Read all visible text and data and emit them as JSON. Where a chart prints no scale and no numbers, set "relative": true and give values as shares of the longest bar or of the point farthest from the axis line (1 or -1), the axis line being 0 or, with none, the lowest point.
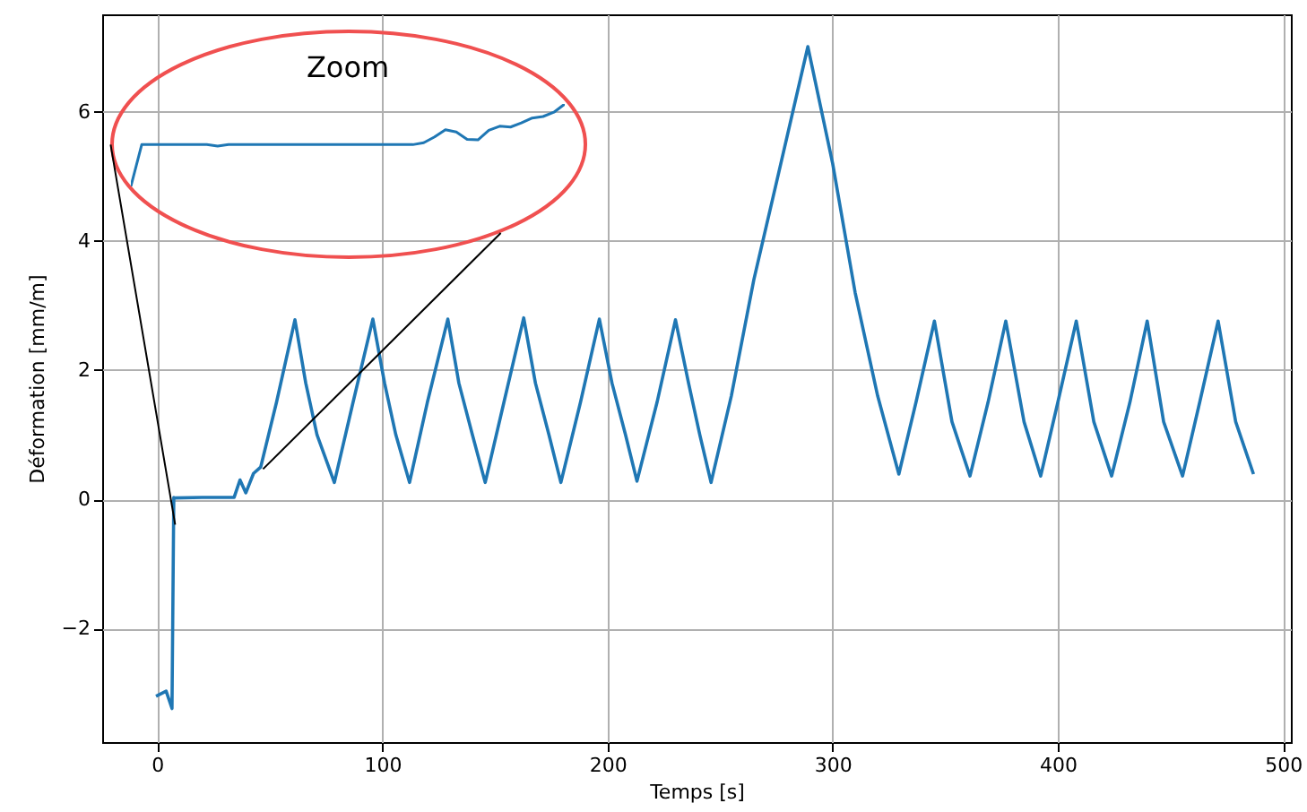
{
  "chart_data": [
    {
      "type": "line",
      "xlabel": "Temps [s]",
      "ylabel": "Déformation [mm/m]",
      "series": [
        {
          "color": "#1f77b4",
          "x": [
            -0.5,
            4,
            6.6,
            7.4,
            7.6,
            20,
            34.2,
            36.8,
            39.4,
            42.8,
            46,
            53,
            61.2,
            66,
            71,
            78.7,
            87,
            95.8,
            101,
            106,
            112.1,
            120,
            129.1,
            134,
            140,
            145.7,
            154,
            162.8,
            168,
            174,
            179.3,
            188,
            196.4,
            202,
            208,
            213.1,
            222,
            230.2,
            236,
            241,
            246,
            255,
            265,
            275,
            289,
            300,
            310,
            320,
            329.4,
            337,
            345.2,
            353,
            361,
            369,
            376.9,
            385,
            392.4,
            400,
            408.2,
            416,
            423.9,
            432,
            439.7,
            447,
            455.4,
            463,
            471.2,
            479,
            486.9
          ],
          "values": [
            -3.05,
            -2.97,
            -3.24,
            0.03,
            0.02,
            0.03,
            0.03,
            0.3,
            0.1,
            0.4,
            0.5,
            1.5,
            2.78,
            1.8,
            1,
            0.26,
            1.5,
            2.79,
            1.8,
            1,
            0.26,
            1.5,
            2.79,
            1.8,
            1,
            0.26,
            1.5,
            2.81,
            1.8,
            1,
            0.26,
            1.5,
            2.79,
            1.8,
            1,
            0.28,
            1.5,
            2.78,
            1.8,
            1,
            0.26,
            1.6,
            3.4,
            4.9,
            7.01,
            5.2,
            3.2,
            1.6,
            0.39,
            1.5,
            2.76,
            1.2,
            0.36,
            1.5,
            2.76,
            1.2,
            0.36,
            1.5,
            2.76,
            1.2,
            0.36,
            1.5,
            2.76,
            1.2,
            0.36,
            1.5,
            2.76,
            1.2,
            0.39
          ]
        }
      ],
      "xlim": [
        -24.4,
        503.5
      ],
      "ylim": [
        -3.76,
        7.51
      ],
      "xticks": [
        0,
        100,
        200,
        300,
        400,
        500
      ],
      "yticks": [
        {
          "value": -2,
          "label": "−2"
        },
        0,
        2,
        4,
        6
      ],
      "grid": true
    },
    {
      "type": "line",
      "title": "Zoom",
      "relative": true,
      "categories": [
        null,
        null,
        null,
        null,
        null,
        null,
        null,
        null,
        null,
        null,
        null,
        null,
        null,
        null,
        null,
        null,
        null,
        null,
        null,
        null,
        null,
        null,
        null,
        null,
        null,
        null,
        null,
        null,
        null,
        null,
        null,
        null,
        null,
        null,
        null,
        null,
        null,
        null,
        null,
        null,
        null
      ],
      "series": [
        {
          "color": "#1f77b4",
          "values": [
            0,
            0.507,
            0.507,
            0.507,
            0.507,
            0.507,
            0.507,
            0.507,
            0.49,
            0.507,
            0.507,
            0.507,
            0.507,
            0.507,
            0.507,
            0.507,
            0.507,
            0.507,
            0.507,
            0.507,
            0.507,
            0.507,
            0.507,
            0.507,
            0.507,
            0.507,
            0.507,
            0.53,
            0.6,
            0.687,
            0.66,
            0.57,
            0.565,
            0.68,
            0.73,
            0.72,
            0.77,
            0.83,
            0.848,
            0.9,
            1
          ]
        }
      ]
    }
  ]
}
